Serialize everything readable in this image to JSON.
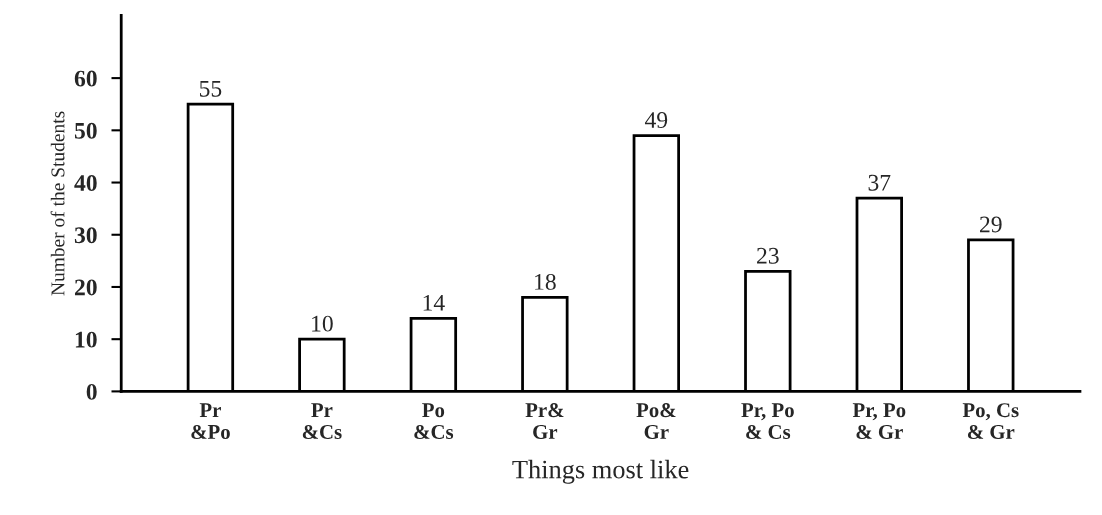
{
  "chart_data": {
    "type": "bar",
    "xlabel": "Things most like",
    "ylabel": "Number of the Students",
    "categories": [
      "Pr\n&Po",
      "Pr\n&Cs",
      "Po\n&Cs",
      "Pr&\nGr",
      "Po&\nGr",
      "Pr, Po\n& Cs",
      "Pr, Po\n& Gr",
      "Po, Cs\n& Gr"
    ],
    "values": [
      55,
      10,
      14,
      18,
      49,
      23,
      37,
      29
    ],
    "color": "#ffffff",
    "ylim": [
      0,
      72
    ],
    "yticks": [
      0,
      10,
      20,
      30,
      40,
      50,
      60
    ],
    "grid": false,
    "data_labels": true
  }
}
